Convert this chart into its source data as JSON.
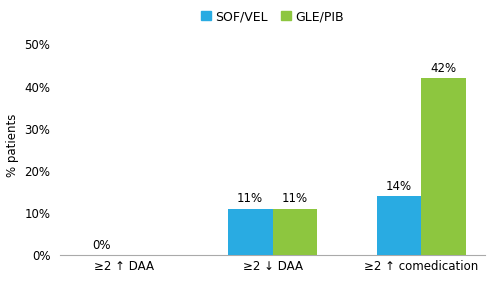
{
  "categories": [
    "≥2 ↑ DAA",
    "≥2 ↓ DAA",
    "≥2 ↑ comedication"
  ],
  "sof_vel": [
    0,
    11,
    14
  ],
  "gle_pib": [
    0,
    11,
    42
  ],
  "sof_vel_color": "#29ABE2",
  "gle_pib_color": "#8DC63F",
  "ylabel": "% patients",
  "ylim": [
    0,
    52
  ],
  "yticks": [
    0,
    10,
    20,
    30,
    40,
    50
  ],
  "ytick_labels": [
    "0%",
    "10%",
    "20%",
    "30%",
    "40%",
    "50%"
  ],
  "legend_labels": [
    "SOF/VEL",
    "GLE/PIB"
  ],
  "bar_width": 0.3,
  "bar_label_fontsize": 8.5,
  "axis_fontsize": 8.5,
  "tick_fontsize": 8.5,
  "legend_fontsize": 9,
  "background_color": "#ffffff"
}
